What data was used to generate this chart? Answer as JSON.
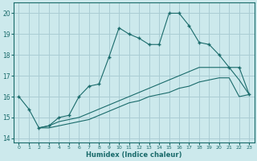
{
  "xlabel": "Humidex (Indice chaleur)",
  "bg_color": "#cce9ec",
  "grid_color": "#aacdd4",
  "line_color": "#1a6b6b",
  "xlim": [
    -0.5,
    23.5
  ],
  "ylim": [
    13.8,
    20.5
  ],
  "xticks": [
    0,
    1,
    2,
    3,
    4,
    5,
    6,
    7,
    8,
    9,
    10,
    11,
    12,
    13,
    14,
    15,
    16,
    17,
    18,
    19,
    20,
    21,
    22,
    23
  ],
  "yticks": [
    14,
    15,
    16,
    17,
    18,
    19,
    20
  ],
  "line1_x": [
    0,
    1,
    2,
    3,
    4,
    5,
    6,
    7,
    8,
    9,
    10,
    11,
    12,
    13,
    14,
    15,
    16,
    17,
    18,
    19,
    20,
    21,
    22,
    23
  ],
  "line1_y": [
    16.0,
    15.4,
    14.5,
    14.6,
    15.0,
    15.1,
    16.0,
    16.5,
    16.6,
    17.9,
    19.3,
    19.0,
    18.8,
    18.5,
    18.5,
    20.0,
    20.0,
    19.4,
    18.6,
    18.5,
    18.0,
    17.4,
    17.4,
    16.1
  ],
  "line2_x": [
    2,
    3,
    4,
    5,
    6,
    7,
    8,
    9,
    10,
    11,
    12,
    13,
    14,
    15,
    16,
    17,
    18,
    19,
    20,
    21,
    22,
    23
  ],
  "line2_y": [
    14.5,
    14.6,
    14.8,
    14.9,
    15.0,
    15.2,
    15.4,
    15.6,
    15.8,
    16.0,
    16.2,
    16.4,
    16.6,
    16.8,
    17.0,
    17.2,
    17.4,
    17.4,
    17.4,
    17.4,
    16.8,
    16.1
  ],
  "line3_x": [
    2,
    3,
    4,
    5,
    6,
    7,
    8,
    9,
    10,
    11,
    12,
    13,
    14,
    15,
    16,
    17,
    18,
    19,
    20,
    21,
    22,
    23
  ],
  "line3_y": [
    14.5,
    14.5,
    14.6,
    14.7,
    14.8,
    14.9,
    15.1,
    15.3,
    15.5,
    15.7,
    15.8,
    16.0,
    16.1,
    16.2,
    16.4,
    16.5,
    16.7,
    16.8,
    16.9,
    16.9,
    16.0,
    16.1
  ]
}
